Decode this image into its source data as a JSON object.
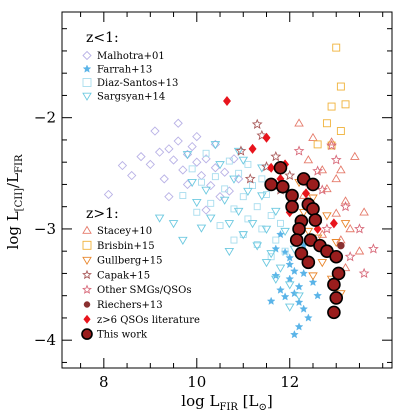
{
  "chart_data": {
    "type": "scatter",
    "title": "",
    "xlabel_main": "log L",
    "xlabel_sub": "FIR",
    "xlabel_unit_open": " [L",
    "xlabel_unit_sub": "⊙",
    "xlabel_unit_close": "]",
    "ylabel_main": "log L",
    "ylabel_sub1": "[CII]",
    "ylabel_mid": "/L",
    "ylabel_sub2": "FIR",
    "xlim": [
      7.1,
      14.2
    ],
    "ylim": [
      -4.25,
      -1.05
    ],
    "xticks_major": [
      8,
      10,
      12
    ],
    "xticks_minor": [
      7.5,
      8.5,
      9,
      9.5,
      10.5,
      11,
      11.5,
      12.5,
      13,
      13.5,
      14
    ],
    "xtick_labels": [
      "8",
      "10",
      "12"
    ],
    "yticks_major": [
      -2,
      -3,
      -4
    ],
    "yticks_minor": [
      -1.2,
      -1.4,
      -1.6,
      -1.8,
      -2.2,
      -2.4,
      -2.6,
      -2.8,
      -3.2,
      -3.4,
      -3.6,
      -3.8,
      -4.2
    ],
    "ytick_labels": [
      "−2",
      "−3",
      "−4"
    ],
    "legend_low_title": "z<1:",
    "legend_high_title": "z>1:",
    "series": [
      {
        "name": "Malhotra+01",
        "marker": "diamond-open",
        "color": "#b9b2e6",
        "size": 4,
        "legend": "low",
        "points": [
          [
            8.1,
            -2.69
          ],
          [
            8.6,
            -2.52
          ],
          [
            8.8,
            -2.35
          ],
          [
            9.0,
            -2.42
          ],
          [
            9.2,
            -2.31
          ],
          [
            9.3,
            -2.55
          ],
          [
            9.4,
            -2.28
          ],
          [
            9.5,
            -2.38
          ],
          [
            9.6,
            -2.21
          ],
          [
            9.7,
            -2.47
          ],
          [
            9.8,
            -2.33
          ],
          [
            9.9,
            -2.26
          ],
          [
            10.0,
            -2.4
          ],
          [
            10.1,
            -2.52
          ],
          [
            10.2,
            -2.37
          ],
          [
            10.3,
            -2.61
          ],
          [
            10.4,
            -2.45
          ],
          [
            10.5,
            -2.71
          ],
          [
            10.6,
            -2.49
          ],
          [
            10.7,
            -2.66
          ],
          [
            9.1,
            -2.12
          ],
          [
            9.6,
            -2.05
          ],
          [
            10.0,
            -2.17
          ],
          [
            10.4,
            -2.24
          ],
          [
            10.8,
            -2.37
          ],
          [
            8.4,
            -2.43
          ],
          [
            9.8,
            -2.6
          ],
          [
            10.2,
            -2.83
          ],
          [
            9.4,
            -2.71
          ],
          [
            10.9,
            -2.55
          ]
        ]
      },
      {
        "name": "Farrah+13",
        "marker": "star",
        "color": "#5ab4e8",
        "size": 4,
        "legend": "low",
        "points": [
          [
            11.8,
            -3.05
          ],
          [
            11.9,
            -3.21
          ],
          [
            12.0,
            -3.32
          ],
          [
            12.1,
            -3.38
          ],
          [
            12.0,
            -3.45
          ],
          [
            12.2,
            -3.52
          ],
          [
            12.3,
            -3.4
          ],
          [
            12.1,
            -3.58
          ],
          [
            11.9,
            -3.61
          ],
          [
            12.4,
            -3.33
          ],
          [
            12.5,
            -3.48
          ],
          [
            12.2,
            -3.66
          ],
          [
            12.3,
            -3.72
          ],
          [
            11.7,
            -3.42
          ],
          [
            12.0,
            -3.26
          ],
          [
            12.4,
            -3.8
          ],
          [
            12.2,
            -3.88
          ],
          [
            11.7,
            -3.18
          ],
          [
            11.8,
            -3.55
          ],
          [
            12.6,
            -3.6
          ],
          [
            12.1,
            -3.95
          ],
          [
            11.6,
            -3.65
          ],
          [
            12.3,
            -3.15
          ]
        ]
      },
      {
        "name": "Diaz-Santos+13",
        "marker": "square-open",
        "color": "#a8ddee",
        "size": 3,
        "legend": "low",
        "points": [
          [
            9.7,
            -2.7
          ],
          [
            9.9,
            -2.46
          ],
          [
            10.1,
            -2.58
          ],
          [
            10.3,
            -2.77
          ],
          [
            10.4,
            -2.53
          ],
          [
            10.6,
            -2.64
          ],
          [
            10.8,
            -2.82
          ],
          [
            10.9,
            -2.5
          ],
          [
            11.0,
            -2.71
          ],
          [
            11.1,
            -2.91
          ],
          [
            11.2,
            -2.61
          ],
          [
            11.3,
            -2.8
          ],
          [
            11.4,
            -3.0
          ],
          [
            11.5,
            -2.69
          ],
          [
            11.6,
            -2.88
          ],
          [
            11.7,
            -3.1
          ],
          [
            10.7,
            -2.39
          ],
          [
            10.2,
            -2.32
          ],
          [
            11.8,
            -2.95
          ],
          [
            11.1,
            -2.42
          ],
          [
            10.5,
            -2.97
          ],
          [
            11.3,
            -3.14
          ],
          [
            11.6,
            -3.25
          ],
          [
            10.0,
            -2.85
          ],
          [
            11.0,
            -3.05
          ],
          [
            11.9,
            -3.2
          ],
          [
            11.4,
            -2.55
          ],
          [
            10.8,
            -3.1
          ]
        ]
      },
      {
        "name": "Sargsyan+14",
        "marker": "tri-down-open",
        "color": "#6dc9e0",
        "size": 4,
        "legend": "low",
        "points": [
          [
            9.2,
            -2.9
          ],
          [
            9.5,
            -2.95
          ],
          [
            9.7,
            -3.1
          ],
          [
            9.9,
            -2.58
          ],
          [
            10.0,
            -2.76
          ],
          [
            10.2,
            -2.65
          ],
          [
            10.3,
            -2.9
          ],
          [
            10.5,
            -2.42
          ],
          [
            10.6,
            -2.74
          ],
          [
            10.7,
            -2.95
          ],
          [
            10.8,
            -2.55
          ],
          [
            10.9,
            -2.84
          ],
          [
            11.0,
            -3.05
          ],
          [
            11.1,
            -2.66
          ],
          [
            11.2,
            -2.95
          ],
          [
            11.3,
            -3.15
          ],
          [
            11.4,
            -2.7
          ],
          [
            11.5,
            -3.0
          ],
          [
            11.6,
            -3.22
          ],
          [
            11.7,
            -2.84
          ],
          [
            11.8,
            -3.35
          ],
          [
            11.9,
            -3.02
          ],
          [
            12.0,
            -3.5
          ],
          [
            12.1,
            -3.18
          ],
          [
            10.4,
            -2.24
          ],
          [
            10.9,
            -2.3
          ],
          [
            11.4,
            -2.45
          ],
          [
            9.8,
            -2.33
          ],
          [
            10.1,
            -2.99
          ],
          [
            11.0,
            -2.38
          ],
          [
            11.7,
            -3.45
          ],
          [
            12.2,
            -3.6
          ],
          [
            11.5,
            -3.3
          ],
          [
            10.7,
            -3.2
          ],
          [
            12.0,
            -3.7
          ]
        ]
      },
      {
        "name": "Stacey+10",
        "marker": "tri-up-open",
        "color": "#e57a6a",
        "size": 4,
        "legend": "high",
        "points": [
          [
            12.2,
            -2.05
          ],
          [
            12.5,
            -2.18
          ],
          [
            12.7,
            -2.47
          ],
          [
            12.9,
            -2.22
          ],
          [
            13.0,
            -2.55
          ],
          [
            13.2,
            -2.75
          ],
          [
            13.0,
            -2.86
          ],
          [
            13.3,
            -3.0
          ],
          [
            13.1,
            -3.1
          ],
          [
            12.8,
            -2.64
          ],
          [
            13.4,
            -2.35
          ],
          [
            12.6,
            -2.92
          ],
          [
            13.5,
            -3.2
          ],
          [
            12.4,
            -2.38
          ],
          [
            13.2,
            -3.35
          ],
          [
            12.9,
            -3.2
          ],
          [
            13.6,
            -2.85
          ],
          [
            12.3,
            -2.7
          ],
          [
            13.1,
            -2.47
          ],
          [
            12.7,
            -3.05
          ]
        ]
      },
      {
        "name": "Brisbin+15",
        "marker": "square-open",
        "color": "#f0b23a",
        "size": 3.5,
        "legend": "high",
        "points": [
          [
            13.0,
            -1.37
          ],
          [
            12.9,
            -1.9
          ],
          [
            13.1,
            -1.72
          ],
          [
            12.8,
            -2.05
          ],
          [
            13.2,
            -1.88
          ],
          [
            12.9,
            -2.25
          ],
          [
            12.6,
            -2.24
          ],
          [
            13.1,
            -2.12
          ]
        ]
      },
      {
        "name": "Gullberg+15",
        "marker": "tri-down-open",
        "color": "#e9862c",
        "size": 4,
        "legend": "high",
        "points": [
          [
            12.2,
            -2.58
          ],
          [
            12.5,
            -2.72
          ],
          [
            12.8,
            -2.88
          ],
          [
            12.4,
            -3.02
          ],
          [
            13.0,
            -3.12
          ],
          [
            12.7,
            -3.3
          ],
          [
            12.3,
            -2.85
          ],
          [
            13.2,
            -2.95
          ],
          [
            12.9,
            -3.45
          ],
          [
            12.6,
            -3.08
          ],
          [
            13.1,
            -3.58
          ],
          [
            12.5,
            -3.42
          ]
        ]
      },
      {
        "name": "Capak+15",
        "marker": "star-open",
        "color": "#a95a5a",
        "size": 4.5,
        "legend": "high",
        "points": [
          [
            10.95,
            -2.3
          ],
          [
            11.4,
            -2.16
          ],
          [
            11.7,
            -2.35
          ],
          [
            11.15,
            -2.55
          ],
          [
            12.0,
            -2.52
          ],
          [
            11.5,
            -2.44
          ],
          [
            11.8,
            -2.65
          ],
          [
            11.3,
            -2.06
          ]
        ]
      },
      {
        "name": "Other SMGs/QSOs",
        "marker": "star-open",
        "color": "#d86a7a",
        "size": 4.5,
        "legend": "high",
        "points": [
          [
            12.2,
            -2.3
          ],
          [
            12.7,
            -2.65
          ],
          [
            13.0,
            -2.38
          ],
          [
            13.2,
            -2.8
          ],
          [
            12.8,
            -3.0
          ],
          [
            13.6,
            -3.4
          ],
          [
            13.5,
            -3.0
          ],
          [
            12.6,
            -2.48
          ],
          [
            13.3,
            -3.25
          ],
          [
            12.4,
            -2.58
          ],
          [
            13.8,
            -3.18
          ],
          [
            12.9,
            -2.25
          ]
        ]
      },
      {
        "name": "Riechers+13",
        "marker": "circle",
        "color": "#8a3030",
        "size": 3.5,
        "legend": "high",
        "points": [
          [
            13.1,
            -3.15
          ]
        ]
      },
      {
        "name": "z>6 QSOs literature",
        "marker": "diamond",
        "color": "#e8141c",
        "size": 4.5,
        "legend": "high",
        "points": [
          [
            10.65,
            -1.85
          ],
          [
            11.2,
            -2.28
          ],
          [
            11.5,
            -2.18
          ],
          [
            11.6,
            -2.45
          ],
          [
            11.9,
            -2.42
          ],
          [
            12.1,
            -2.73
          ],
          [
            12.35,
            -2.68
          ],
          [
            12.5,
            -2.9
          ],
          [
            12.0,
            -2.85
          ],
          [
            12.2,
            -3.02
          ],
          [
            12.6,
            -3.0
          ],
          [
            11.8,
            -2.55
          ],
          [
            12.95,
            -2.95
          ]
        ]
      },
      {
        "name": "This work",
        "marker": "circle-filled",
        "color": "#9a1d1d",
        "size": 6,
        "legend": "high",
        "points": [
          [
            11.8,
            -2.45
          ],
          [
            11.6,
            -2.6
          ],
          [
            11.85,
            -2.62
          ],
          [
            12.3,
            -2.55
          ],
          [
            12.05,
            -2.7
          ],
          [
            12.5,
            -2.6
          ],
          [
            12.05,
            -2.8
          ],
          [
            12.4,
            -2.78
          ],
          [
            12.5,
            -2.82
          ],
          [
            12.25,
            -2.93
          ],
          [
            12.55,
            -2.92
          ],
          [
            12.2,
            -3.0
          ],
          [
            12.15,
            -3.1
          ],
          [
            12.45,
            -3.1
          ],
          [
            12.65,
            -3.15
          ],
          [
            12.8,
            -3.2
          ],
          [
            12.25,
            -3.22
          ],
          [
            13.0,
            -3.25
          ],
          [
            12.4,
            -3.3
          ],
          [
            13.05,
            -3.4
          ],
          [
            12.95,
            -3.5
          ],
          [
            13.0,
            -3.62
          ],
          [
            12.95,
            -3.75
          ]
        ]
      }
    ]
  }
}
